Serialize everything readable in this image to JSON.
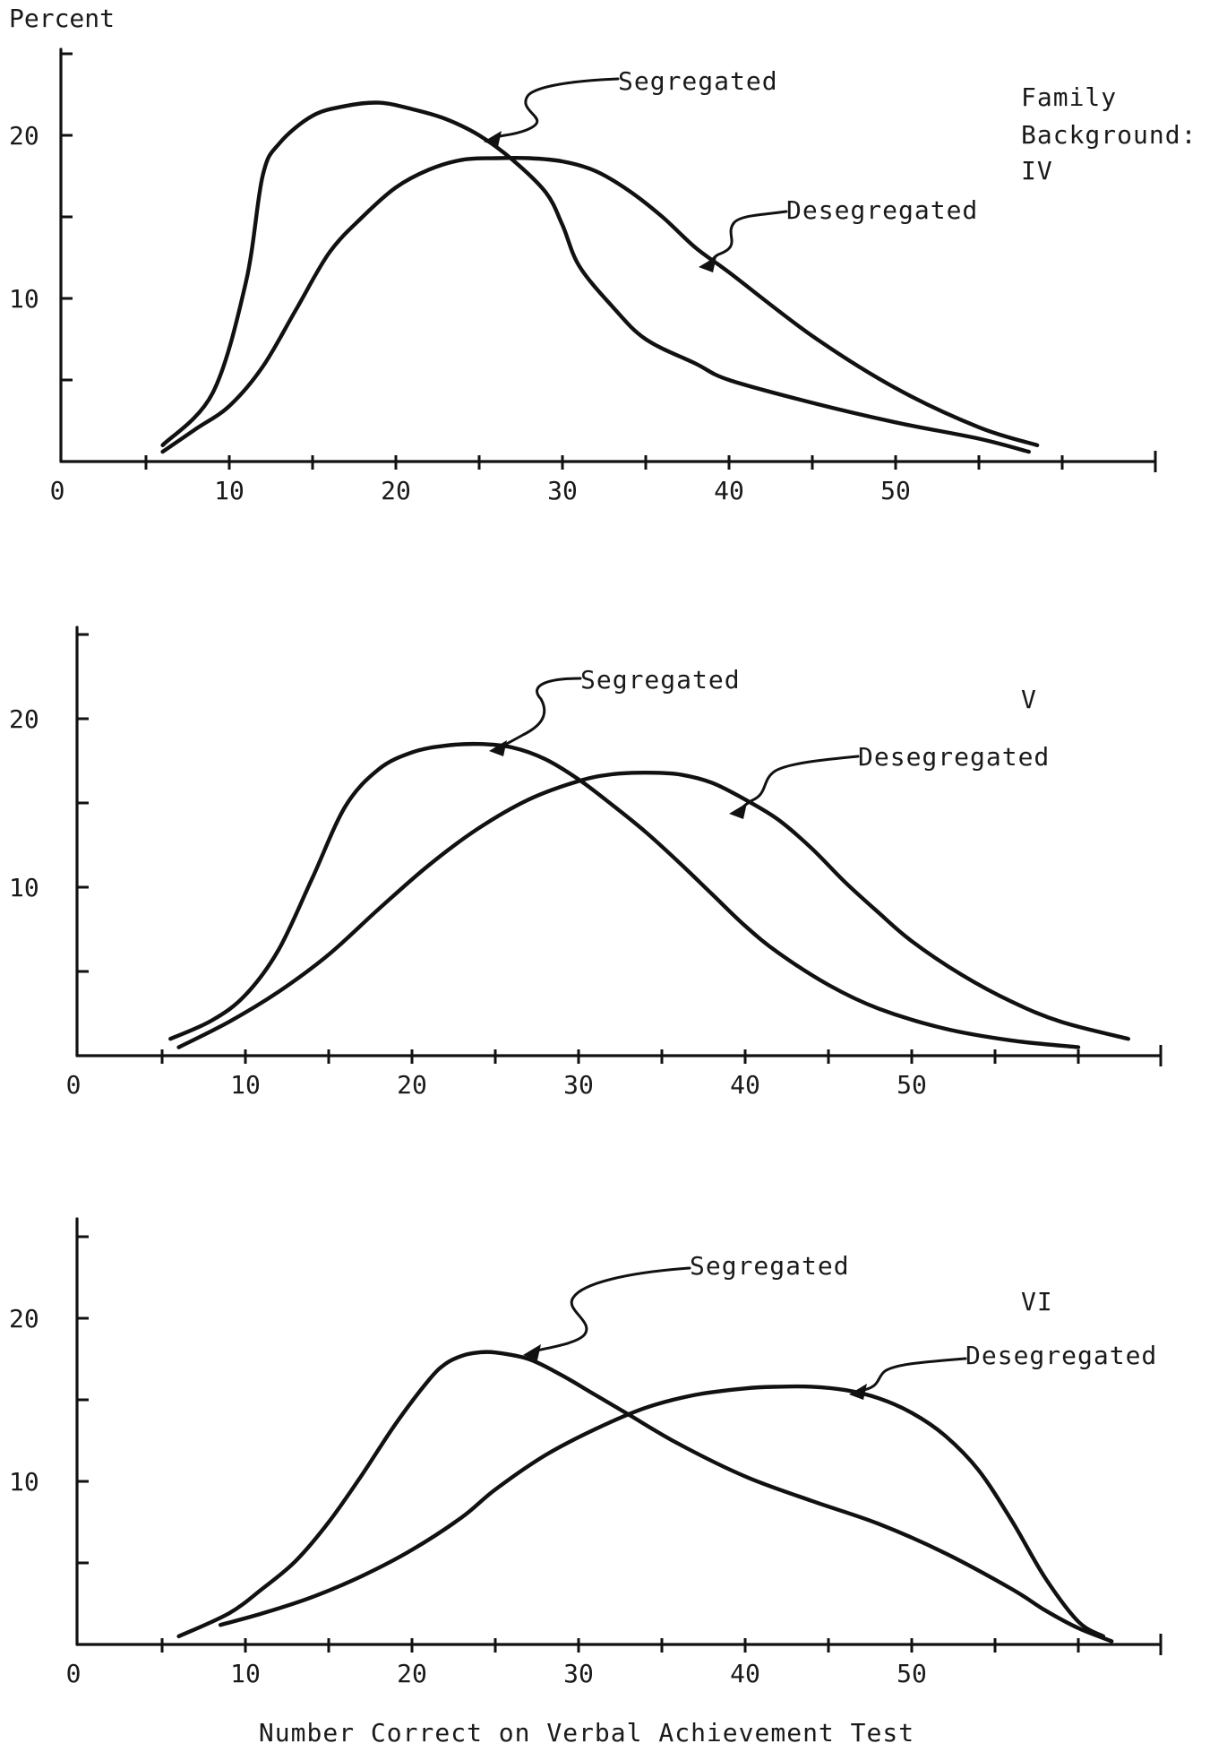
{
  "y_unit_label": "Percent",
  "xlabel": "Number Correct on Verbal Achievement Test",
  "legend_title": "Family Background:",
  "chart_data": [
    {
      "type": "line",
      "panel_label": "IV",
      "xlim": [
        0,
        65
      ],
      "ylim": [
        0,
        25
      ],
      "x_ticks": [
        0,
        10,
        20,
        30,
        40,
        50
      ],
      "y_ticks": [
        10,
        20
      ],
      "series": [
        {
          "name": "Segregated",
          "x": [
            6,
            9,
            11,
            12,
            13,
            15,
            17,
            19,
            21,
            23,
            25,
            27,
            29,
            30,
            31,
            33,
            35,
            38,
            40,
            45,
            50,
            55,
            58
          ],
          "y": [
            1,
            4.2,
            11,
            17.5,
            19.5,
            21.2,
            21.8,
            22,
            21.6,
            21,
            20,
            18.5,
            16.5,
            14.5,
            12,
            9.5,
            7.5,
            6,
            5,
            3.6,
            2.4,
            1.4,
            0.6
          ]
        },
        {
          "name": "Desegregated",
          "x": [
            6,
            8,
            10,
            12,
            14,
            16,
            18,
            20,
            22,
            24,
            26,
            28,
            30,
            32,
            34,
            36,
            38,
            40,
            45,
            50,
            55,
            58.5
          ],
          "y": [
            0.6,
            2,
            3.4,
            5.8,
            9.3,
            12.8,
            15,
            16.8,
            17.9,
            18.5,
            18.6,
            18.6,
            18.4,
            17.8,
            16.6,
            15,
            13.1,
            11.6,
            7.7,
            4.5,
            2.1,
            1
          ]
        }
      ]
    },
    {
      "type": "line",
      "panel_label": "V",
      "xlim": [
        0,
        65
      ],
      "ylim": [
        0,
        25
      ],
      "x_ticks": [
        0,
        10,
        20,
        30,
        40,
        50
      ],
      "y_ticks": [
        10,
        20
      ],
      "series": [
        {
          "name": "Segregated",
          "x": [
            5.5,
            8,
            10,
            12,
            14,
            16,
            18,
            20,
            22,
            24,
            26,
            28,
            30,
            32,
            34,
            36,
            38,
            40,
            42,
            45,
            48,
            52,
            56,
            60
          ],
          "y": [
            1,
            2.1,
            3.6,
            6.3,
            10.5,
            14.8,
            17,
            18,
            18.4,
            18.5,
            18.3,
            17.6,
            16.4,
            14.9,
            13.3,
            11.5,
            9.6,
            7.7,
            6.1,
            4.2,
            2.8,
            1.6,
            0.9,
            0.5
          ]
        },
        {
          "name": "Desegregated",
          "x": [
            6,
            9,
            12,
            15,
            18,
            21,
            24,
            27,
            30,
            32,
            34,
            36,
            38,
            40,
            42,
            44,
            46,
            48,
            50,
            53,
            56,
            59,
            63
          ],
          "y": [
            0.5,
            2,
            3.8,
            6,
            8.7,
            11.3,
            13.5,
            15.2,
            16.3,
            16.7,
            16.8,
            16.7,
            16.2,
            15.2,
            14,
            12.3,
            10.3,
            8.5,
            6.8,
            4.8,
            3.2,
            2,
            1
          ]
        }
      ]
    },
    {
      "type": "line",
      "panel_label": "VI",
      "xlim": [
        0,
        65
      ],
      "ylim": [
        0,
        25
      ],
      "x_ticks": [
        0,
        10,
        20,
        30,
        40,
        50
      ],
      "y_ticks": [
        10,
        20
      ],
      "series": [
        {
          "name": "Segregated",
          "x": [
            6,
            9,
            11,
            13,
            15,
            17,
            19,
            21,
            22,
            23,
            24,
            25,
            27,
            29,
            31,
            33,
            36,
            40,
            44,
            48,
            52,
            56,
            58,
            60,
            62
          ],
          "y": [
            0.5,
            1.9,
            3.4,
            5.1,
            7.5,
            10.4,
            13.5,
            16.2,
            17.2,
            17.7,
            17.9,
            17.9,
            17.5,
            16.5,
            15.3,
            14.1,
            12.3,
            10.3,
            8.8,
            7.4,
            5.6,
            3.4,
            2.1,
            1,
            0.2
          ]
        },
        {
          "name": "Desegregated",
          "x": [
            8.5,
            11,
            14,
            17,
            20,
            23,
            25,
            28,
            31,
            34,
            37,
            40,
            42,
            44,
            46,
            48,
            50,
            52,
            54,
            56,
            58,
            60,
            61.5
          ],
          "y": [
            1.2,
            1.9,
            2.9,
            4.2,
            5.8,
            7.8,
            9.5,
            11.6,
            13.2,
            14.5,
            15.3,
            15.7,
            15.8,
            15.8,
            15.6,
            15.1,
            14.2,
            12.8,
            10.7,
            7.6,
            4.1,
            1.4,
            0.5
          ]
        }
      ]
    }
  ]
}
